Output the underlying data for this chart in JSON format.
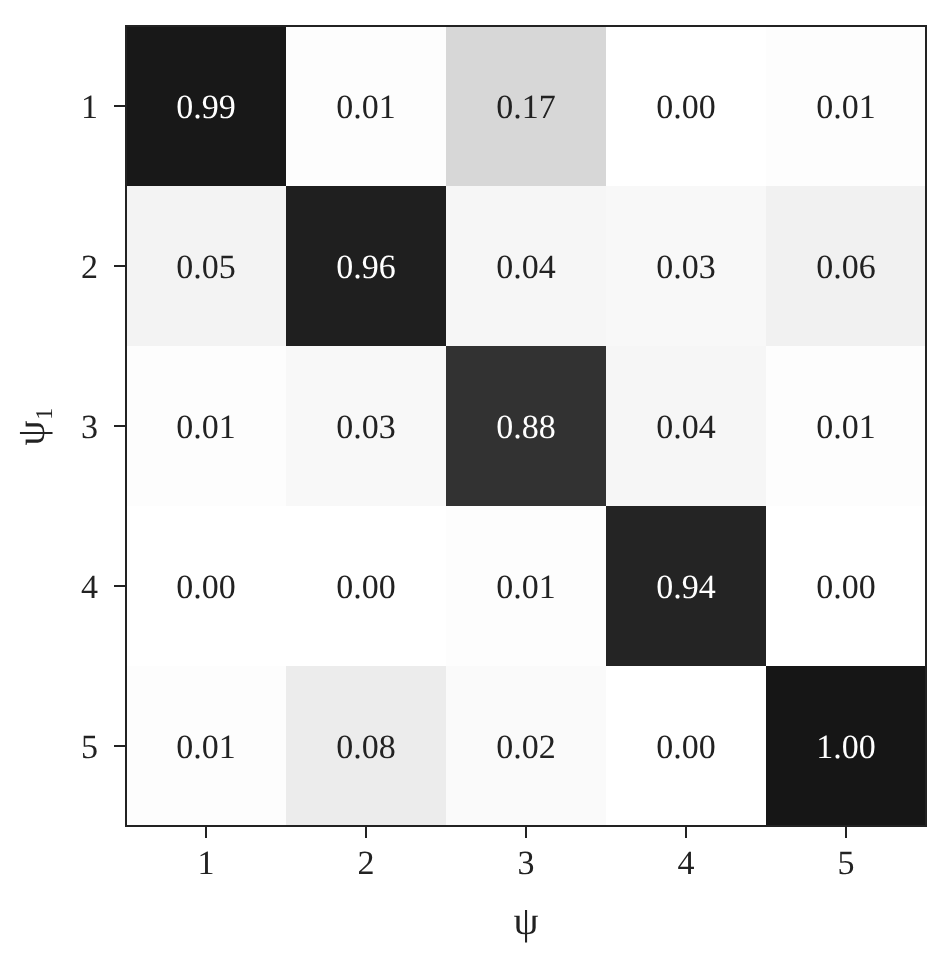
{
  "chart_data": {
    "type": "heatmap",
    "xlabel": "ψ",
    "ylabel": "ψ₁",
    "categories": [
      "1",
      "2",
      "3",
      "4",
      "5"
    ],
    "y_categories": [
      "1",
      "2",
      "3",
      "4",
      "5"
    ],
    "cells": [
      [
        0.99,
        0.01,
        0.17,
        0.0,
        0.01
      ],
      [
        0.05,
        0.96,
        0.04,
        0.03,
        0.06
      ],
      [
        0.01,
        0.03,
        0.88,
        0.04,
        0.01
      ],
      [
        0.0,
        0.0,
        0.01,
        0.94,
        0.0
      ],
      [
        0.01,
        0.08,
        0.02,
        0.0,
        1.0
      ]
    ],
    "cell_labels": [
      [
        "0.99",
        "0.01",
        "0.17",
        "0.00",
        "0.01"
      ],
      [
        "0.05",
        "0.96",
        "0.04",
        "0.03",
        "0.06"
      ],
      [
        "0.01",
        "0.03",
        "0.88",
        "0.04",
        "0.01"
      ],
      [
        "0.00",
        "0.00",
        "0.01",
        "0.94",
        "0.00"
      ],
      [
        "0.01",
        "0.08",
        "0.02",
        "0.00",
        "1.00"
      ]
    ],
    "data_labels": true
  }
}
